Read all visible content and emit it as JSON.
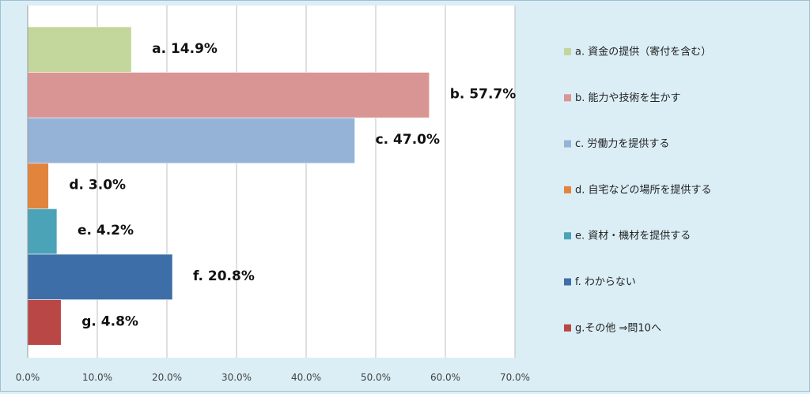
{
  "chart_data": {
    "type": "bar",
    "orientation": "horizontal",
    "categories": [
      "a. 資金の提供（寄付を含む）",
      "b. 能力や技術を生かす",
      "c. 労働力を提供する",
      "d. 自宅などの場所を提供する",
      "e. 資材・機材を提供する",
      "f. わからない",
      "g.その他 ⇒問10へ"
    ],
    "values": [
      14.9,
      57.7,
      47.0,
      3.0,
      4.2,
      20.8,
      4.8
    ],
    "data_labels": [
      "a. 14.9%",
      "b. 57.7%",
      "c. 47.0%",
      "d. 3.0%",
      "e. 4.2%",
      "f. 20.8%",
      "g. 4.8%"
    ],
    "colors": [
      "#c3d69b",
      "#d99594",
      "#95b3d7",
      "#e3843c",
      "#4ba3b7",
      "#3e6ea8",
      "#b94745"
    ],
    "xlim": [
      0,
      70
    ],
    "xticks": [
      "0.0%",
      "10.0%",
      "20.0%",
      "30.0%",
      "40.0%",
      "50.0%",
      "60.0%",
      "70.0%"
    ],
    "grid": true,
    "legend_position": "right",
    "title": "",
    "xlabel": "",
    "ylabel": ""
  }
}
